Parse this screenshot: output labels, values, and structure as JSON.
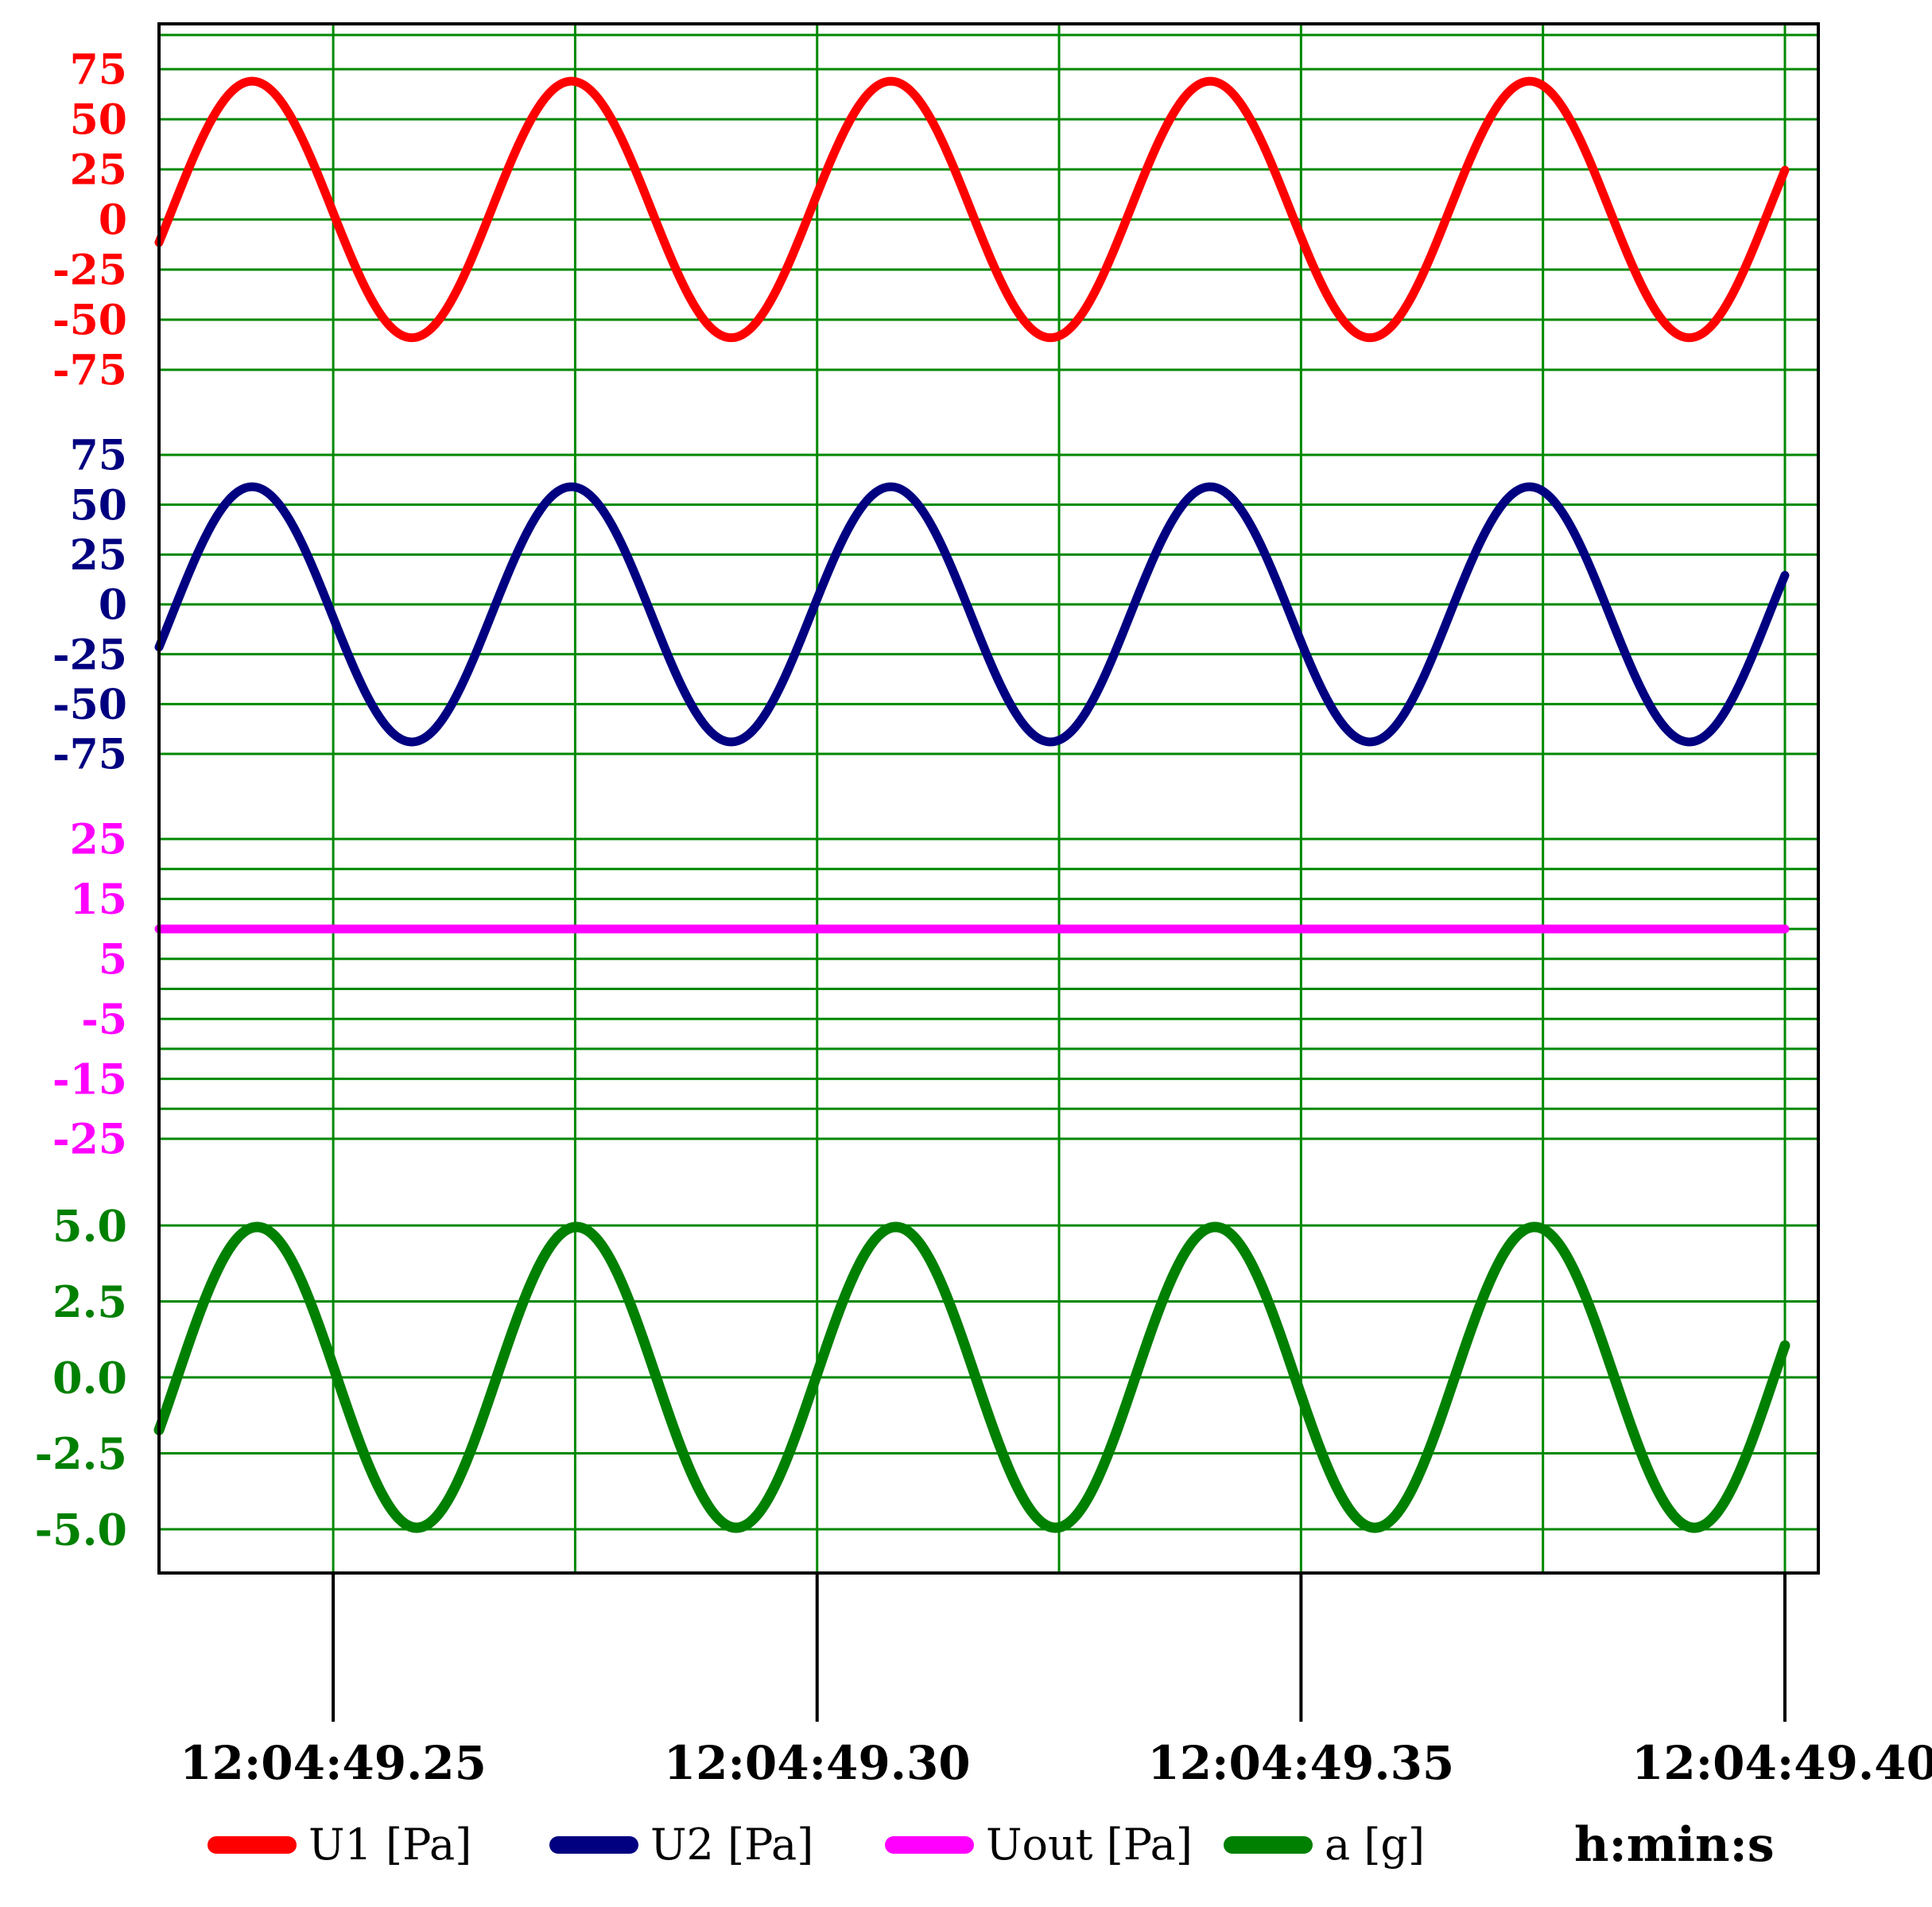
{
  "chart_data": {
    "type": "line",
    "xlabel": "h:min:s",
    "x_range": [
      "12:04:49.2320",
      "12:04:49.4000"
    ],
    "x_ticks": [
      "12:04:49.25",
      "12:04:49.30",
      "12:04:49.35",
      "12:04:49.40"
    ],
    "grid": true,
    "legend_position": "bottom",
    "panels": [
      {
        "series_name": "U1 [Pa]",
        "color": "#ff0000",
        "ylim": [
          -75,
          75
        ],
        "y_ticks": [
          "75",
          "50",
          "25",
          "0",
          "-25",
          "-50",
          "-75"
        ],
        "waveform": "sine",
        "amplitude": 64,
        "offset": 5,
        "period_s": 0.033,
        "phase_deg": -14.9
      },
      {
        "series_name": "U2 [Pa]",
        "color": "#000080",
        "ylim": [
          -75,
          75
        ],
        "y_ticks": [
          "75",
          "50",
          "25",
          "0",
          "-25",
          "-50",
          "-75"
        ],
        "waveform": "sine",
        "amplitude": 64,
        "offset": -5,
        "period_s": 0.033,
        "phase_deg": -14.9
      },
      {
        "series_name": "Uout [Pa]",
        "color": "#ff00ff",
        "ylim": [
          -25,
          25
        ],
        "y_ticks": [
          "25",
          "15",
          "5",
          "-5",
          "-15",
          "-25"
        ],
        "waveform": "constant",
        "value": 10
      },
      {
        "series_name": "a [g]",
        "color": "#008000",
        "ylim": [
          -5.0,
          5.0
        ],
        "y_ticks": [
          "5.0",
          "2.5",
          "0.0",
          "-2.5",
          "-5.0"
        ],
        "waveform": "sine",
        "amplitude": 4.95,
        "offset": 0,
        "period_s": 0.033,
        "phase_deg": -20.5
      }
    ]
  }
}
